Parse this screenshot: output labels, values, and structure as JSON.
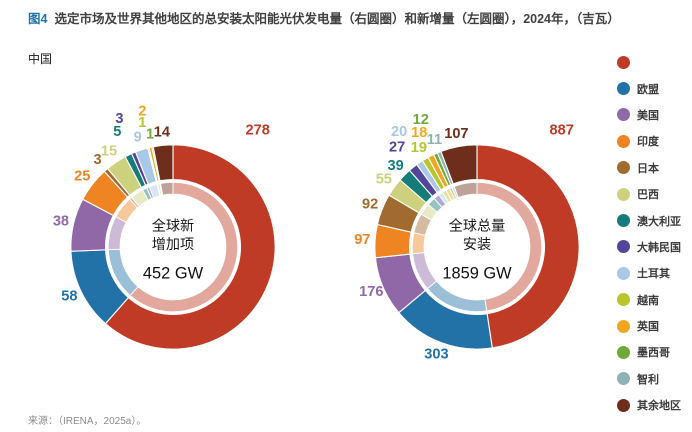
{
  "title": {
    "tag": "图4",
    "text": "选定市场及世界其他地区的总安装太阳能光伏发电量（右圆圈）和新增量（左圆圈），2024年，（吉瓦）"
  },
  "china_label": "中国",
  "source": "来源：（IRENA，2025a）。",
  "legend": {
    "items": [
      {
        "label": "",
        "color": "#bf3b26"
      },
      {
        "label": "欧盟",
        "color": "#2272a7"
      },
      {
        "label": "美国",
        "color": "#9067a7"
      },
      {
        "label": "印度",
        "color": "#ee8522"
      },
      {
        "label": "日本",
        "color": "#a16a2f"
      },
      {
        "label": "巴西",
        "color": "#cdd17e"
      },
      {
        "label": "澳大利亚",
        "color": "#157c79"
      },
      {
        "label": "大韩民国",
        "color": "#52459c"
      },
      {
        "label": "土耳其",
        "color": "#a9c7e8"
      },
      {
        "label": "越南",
        "color": "#b8c62c"
      },
      {
        "label": "英国",
        "color": "#f0a71f"
      },
      {
        "label": "墨西哥",
        "color": "#71a83a"
      },
      {
        "label": "智利",
        "color": "#8fb3b1"
      },
      {
        "label": "其余地区",
        "color": "#6f2e1c"
      }
    ]
  },
  "chart_data": [
    {
      "type": "donut",
      "name": "new-additions",
      "center_lines": [
        "全球新",
        "增加项"
      ],
      "center_value": "452 GW",
      "unit": "GW",
      "categories": [
        "中国",
        "欧盟",
        "美国",
        "印度",
        "日本",
        "巴西",
        "澳大利亚",
        "大韩民国",
        "土耳其",
        "越南",
        "英国",
        "墨西哥",
        "智利",
        "其余地区"
      ],
      "values": [
        278,
        58,
        38,
        25,
        3,
        15,
        5,
        3,
        9,
        1,
        2,
        1,
        0,
        14
      ],
      "colors": [
        "#bf3b26",
        "#2272a7",
        "#9067a7",
        "#ee8522",
        "#a16a2f",
        "#cdd17e",
        "#157c79",
        "#52459c",
        "#a9c7e8",
        "#b8c62c",
        "#f0a71f",
        "#71a83a",
        "#8fb3b1",
        "#6f2e1c"
      ]
    },
    {
      "type": "donut",
      "name": "cumulative-installed",
      "center_lines": [
        "全球总量",
        "安装"
      ],
      "center_value": "1859 GW",
      "unit": "GW",
      "categories": [
        "中国",
        "欧盟",
        "美国",
        "印度",
        "日本",
        "巴西",
        "澳大利亚",
        "大韩民国",
        "土耳其",
        "越南",
        "英国",
        "墨西哥",
        "智利",
        "其余地区"
      ],
      "values": [
        887,
        303,
        176,
        97,
        92,
        55,
        39,
        27,
        20,
        19,
        18,
        12,
        11,
        107
      ],
      "colors": [
        "#bf3b26",
        "#2272a7",
        "#9067a7",
        "#ee8522",
        "#a16a2f",
        "#cdd17e",
        "#157c79",
        "#52459c",
        "#a9c7e8",
        "#b8c62c",
        "#f0a71f",
        "#71a83a",
        "#8fb3b1",
        "#6f2e1c"
      ]
    }
  ]
}
